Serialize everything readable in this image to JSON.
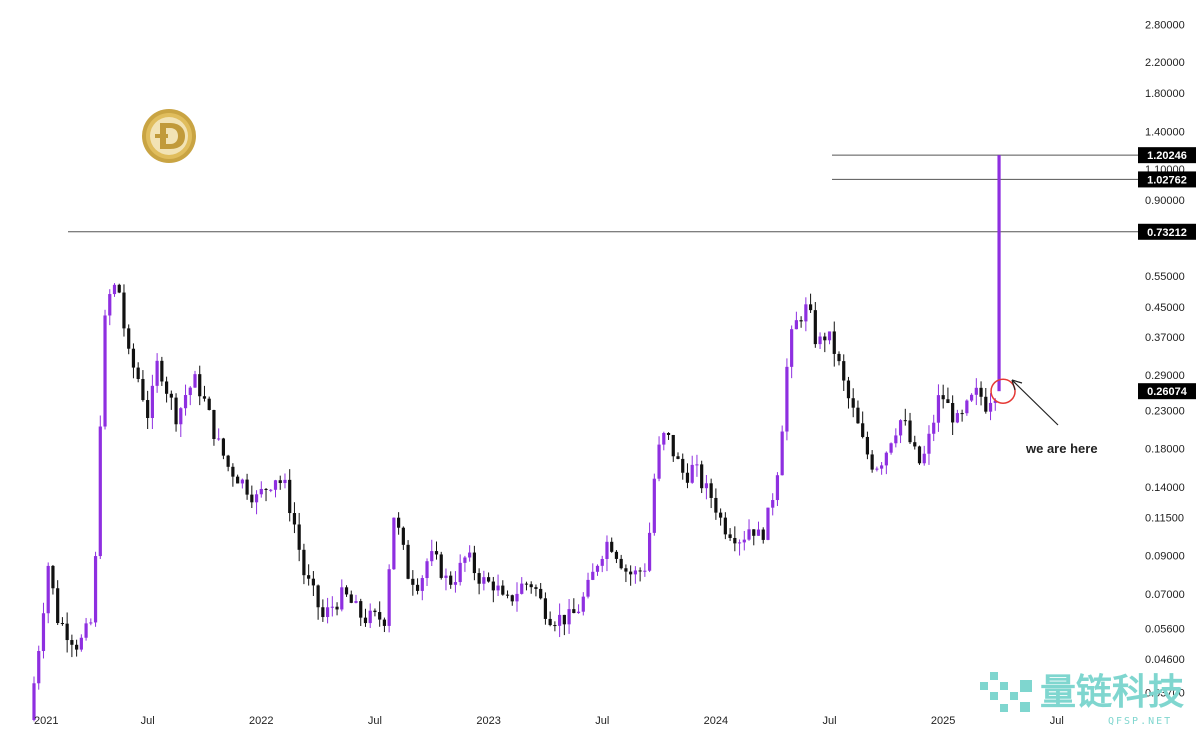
{
  "chart_data": {
    "type": "candlestick",
    "symbol_logo": "dogecoin-logo",
    "scale": "log",
    "ylim": [
      0.031,
      3.0
    ],
    "y_ticks": [
      "2.80000",
      "2.20000",
      "1.80000",
      "1.40000",
      "1.10000",
      "0.90000",
      "0.55000",
      "0.45000",
      "0.37000",
      "0.29000",
      "0.23000",
      "0.18000",
      "0.14000",
      "0.11500",
      "0.09000",
      "0.07000",
      "0.05600",
      "0.04600",
      "0.03700"
    ],
    "x_ticks": [
      "2021",
      "Jul",
      "2022",
      "Jul",
      "2023",
      "Jul",
      "2024",
      "Jul",
      "2025",
      "Jul"
    ],
    "colors": {
      "up": "#8e2fe0",
      "down": "#111111",
      "level_line": "#555555",
      "tag_bg": "#000000",
      "circle": "#e53935"
    },
    "levels": [
      {
        "label": "0.73212",
        "value": 0.73212
      },
      {
        "label": "1.02762",
        "value": 1.02762
      },
      {
        "label": "1.20246",
        "value": 1.20246
      }
    ],
    "current_price": {
      "label": "0.26074",
      "value": 0.26074
    },
    "annotation": "we are here",
    "projection_target": 1.20246,
    "price_path": [
      [
        0,
        0.031
      ],
      [
        0.5,
        0.05
      ],
      [
        1,
        0.085
      ],
      [
        1.5,
        0.06
      ],
      [
        2,
        0.055
      ],
      [
        2.6,
        0.05
      ],
      [
        3.4,
        0.06
      ],
      [
        3.9,
        0.38
      ],
      [
        4.3,
        0.5
      ],
      [
        4.7,
        0.52
      ],
      [
        5.2,
        0.33
      ],
      [
        5.8,
        0.28
      ],
      [
        6.3,
        0.22
      ],
      [
        6.8,
        0.32
      ],
      [
        7.3,
        0.26
      ],
      [
        7.8,
        0.22
      ],
      [
        8.3,
        0.26
      ],
      [
        8.8,
        0.28
      ],
      [
        9.3,
        0.24
      ],
      [
        9.9,
        0.19
      ],
      [
        10.5,
        0.16
      ],
      [
        11,
        0.15
      ],
      [
        11.5,
        0.14
      ],
      [
        12,
        0.13
      ],
      [
        12.5,
        0.14
      ],
      [
        13,
        0.15
      ],
      [
        13.5,
        0.14
      ],
      [
        14,
        0.11
      ],
      [
        14.5,
        0.08
      ],
      [
        15,
        0.07
      ],
      [
        15.5,
        0.06
      ],
      [
        16,
        0.065
      ],
      [
        16.6,
        0.07
      ],
      [
        17.1,
        0.065
      ],
      [
        17.6,
        0.06
      ],
      [
        18.2,
        0.06
      ],
      [
        18.8,
        0.06
      ],
      [
        19.2,
        0.12
      ],
      [
        19.6,
        0.1
      ],
      [
        20,
        0.08
      ],
      [
        20.6,
        0.075
      ],
      [
        21.1,
        0.09
      ],
      [
        21.6,
        0.085
      ],
      [
        22.1,
        0.075
      ],
      [
        22.6,
        0.08
      ],
      [
        23.1,
        0.09
      ],
      [
        23.6,
        0.08
      ],
      [
        24.1,
        0.075
      ],
      [
        24.6,
        0.075
      ],
      [
        25.1,
        0.065
      ],
      [
        25.6,
        0.07
      ],
      [
        26.1,
        0.075
      ],
      [
        26.6,
        0.075
      ],
      [
        27.1,
        0.065
      ],
      [
        27.6,
        0.06
      ],
      [
        28.1,
        0.06
      ],
      [
        28.6,
        0.06
      ],
      [
        29.1,
        0.065
      ],
      [
        29.6,
        0.075
      ],
      [
        30.1,
        0.09
      ],
      [
        30.6,
        0.1
      ],
      [
        31.1,
        0.09
      ],
      [
        31.6,
        0.08
      ],
      [
        32.1,
        0.08
      ],
      [
        32.6,
        0.085
      ],
      [
        33.1,
        0.17
      ],
      [
        33.6,
        0.2
      ],
      [
        34.1,
        0.17
      ],
      [
        34.6,
        0.15
      ],
      [
        35.1,
        0.16
      ],
      [
        35.6,
        0.14
      ],
      [
        36.1,
        0.13
      ],
      [
        36.6,
        0.11
      ],
      [
        37.1,
        0.105
      ],
      [
        37.6,
        0.1
      ],
      [
        38.1,
        0.11
      ],
      [
        38.6,
        0.1
      ],
      [
        39.1,
        0.12
      ],
      [
        39.6,
        0.17
      ],
      [
        40.1,
        0.35
      ],
      [
        40.6,
        0.42
      ],
      [
        41.1,
        0.45
      ],
      [
        41.6,
        0.35
      ],
      [
        42.1,
        0.38
      ],
      [
        42.6,
        0.33
      ],
      [
        43.1,
        0.26
      ],
      [
        43.6,
        0.22
      ],
      [
        44.1,
        0.18
      ],
      [
        44.6,
        0.16
      ],
      [
        45.1,
        0.17
      ],
      [
        45.6,
        0.2
      ],
      [
        46.1,
        0.22
      ],
      [
        46.6,
        0.18
      ],
      [
        47.1,
        0.16
      ],
      [
        47.6,
        0.2
      ],
      [
        48.1,
        0.26
      ],
      [
        48.6,
        0.23
      ],
      [
        49.1,
        0.21
      ],
      [
        49.6,
        0.24
      ],
      [
        50.1,
        0.26
      ],
      [
        50.5,
        0.24
      ],
      [
        50.9,
        0.26074
      ]
    ]
  },
  "watermark": {
    "brand": "量链科技",
    "url": "QFSP.NET"
  }
}
